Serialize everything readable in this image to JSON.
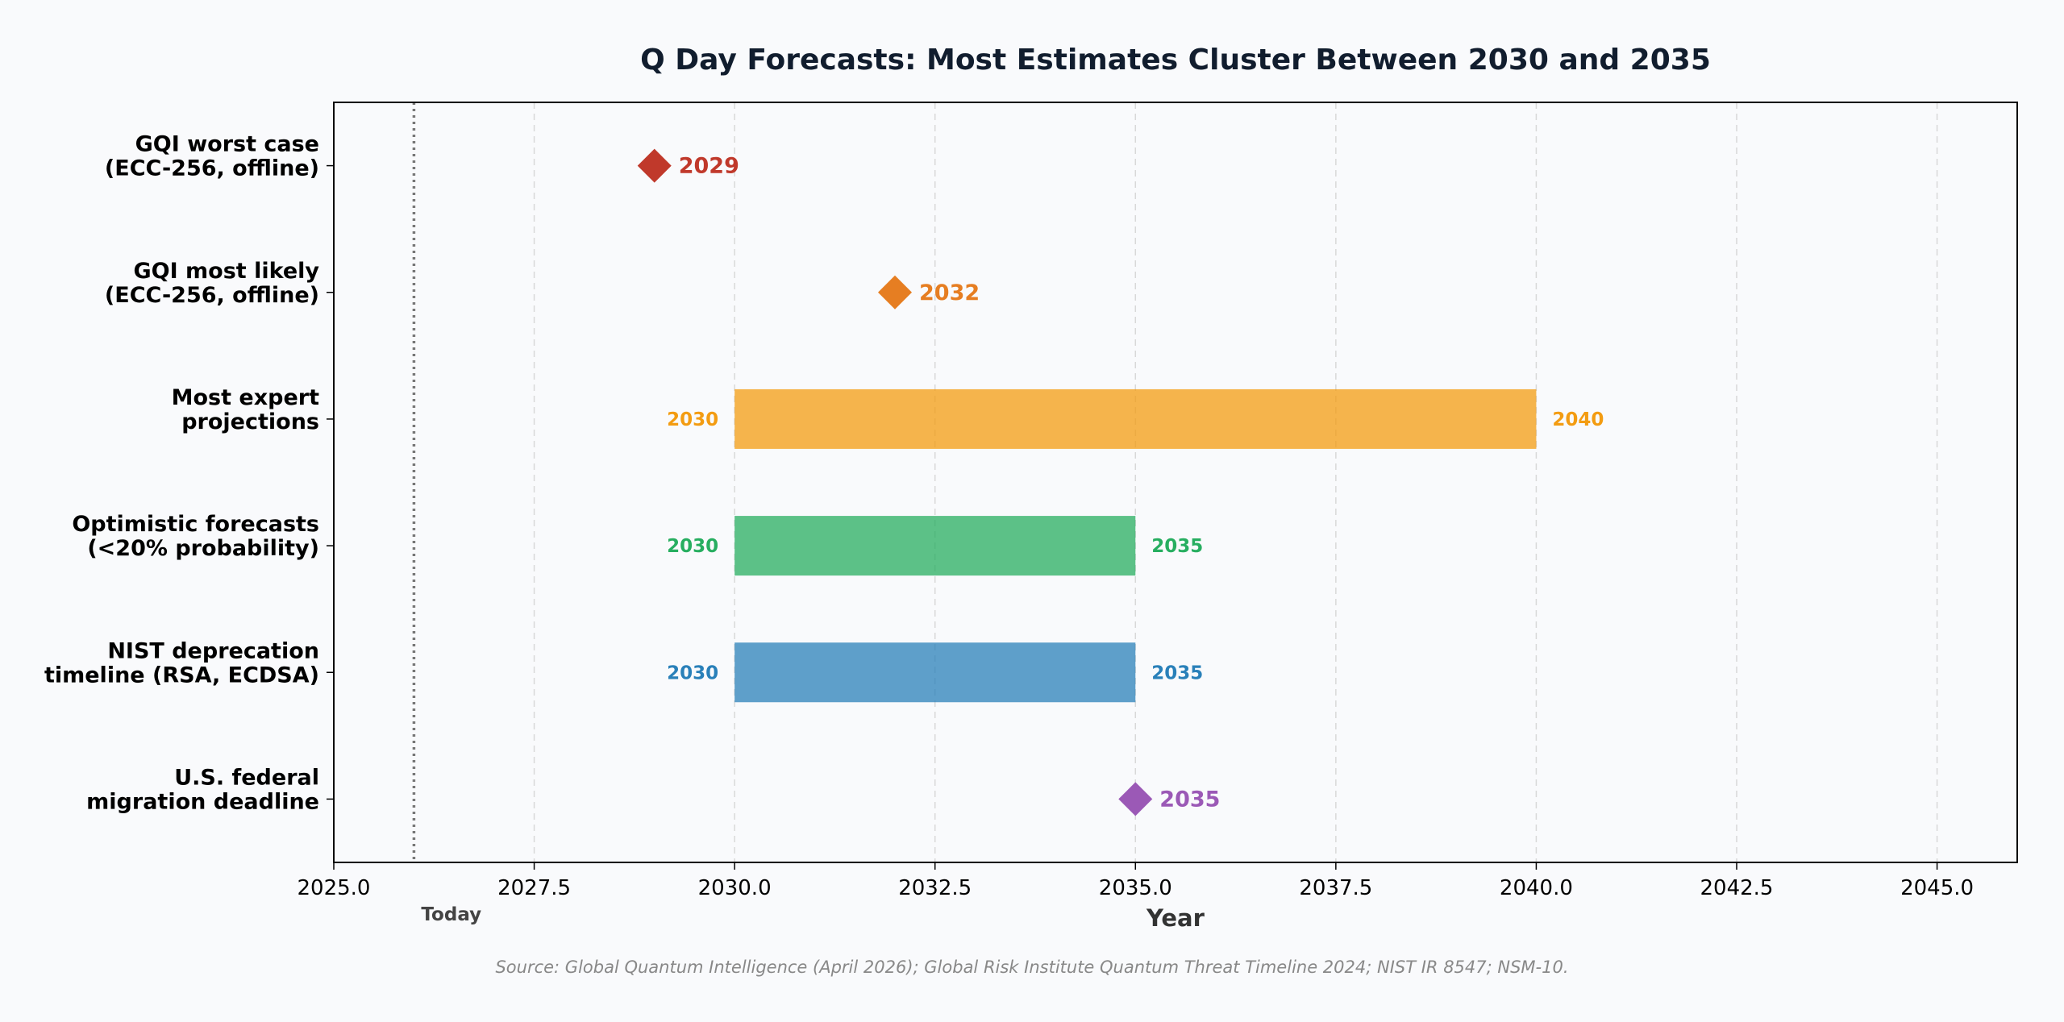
{
  "chart_data": {
    "type": "bar",
    "orientation": "horizontal",
    "title": "Q Day Forecasts: Most Estimates Cluster Between 2030 and 2035",
    "xlabel": "Year",
    "ylabel": "",
    "xlim": [
      2025,
      2046
    ],
    "xticks": [
      2025.0,
      2027.5,
      2030.0,
      2032.5,
      2035.0,
      2037.5,
      2040.0,
      2042.5,
      2045.0
    ],
    "xtick_labels": [
      "2025.0",
      "2027.5",
      "2030.0",
      "2032.5",
      "2035.0",
      "2037.5",
      "2040.0",
      "2042.5",
      "2045.0"
    ],
    "grid": "x-dashed",
    "today": {
      "x": 2026,
      "label": "Today"
    },
    "categories": [
      {
        "label_lines": [
          "GQI worst case",
          "(ECC-256, offline)"
        ],
        "kind": "point",
        "x": 2029,
        "label": "2029",
        "color": "#c0392b"
      },
      {
        "label_lines": [
          "GQI most likely",
          "(ECC-256, offline)"
        ],
        "kind": "point",
        "x": 2032,
        "label": "2032",
        "color": "#e67e22"
      },
      {
        "label_lines": [
          "Most expert",
          "projections"
        ],
        "kind": "range",
        "start": 2030,
        "end": 2040,
        "start_label": "2030",
        "end_label": "2040",
        "color": "#f39c12",
        "label_color": "#f39c12"
      },
      {
        "label_lines": [
          "Optimistic forecasts",
          "(<20% probability)"
        ],
        "kind": "range",
        "start": 2030,
        "end": 2035,
        "start_label": "2030",
        "end_label": "2035",
        "color": "#27ae60",
        "label_color": "#27ae60"
      },
      {
        "label_lines": [
          "NIST deprecation",
          "timeline (RSA, ECDSA)"
        ],
        "kind": "range",
        "start": 2030,
        "end": 2035,
        "start_label": "2030",
        "end_label": "2035",
        "color": "#2980b9",
        "label_color": "#2980b9"
      },
      {
        "label_lines": [
          "U.S. federal",
          "migration deadline"
        ],
        "kind": "point",
        "x": 2035,
        "label": "2035",
        "color": "#9b59b6"
      }
    ],
    "source": "Source: Global Quantum Intelligence (April 2026); Global Risk Institute Quantum Threat Timeline 2024; NIST IR 8547; NSM-10."
  }
}
